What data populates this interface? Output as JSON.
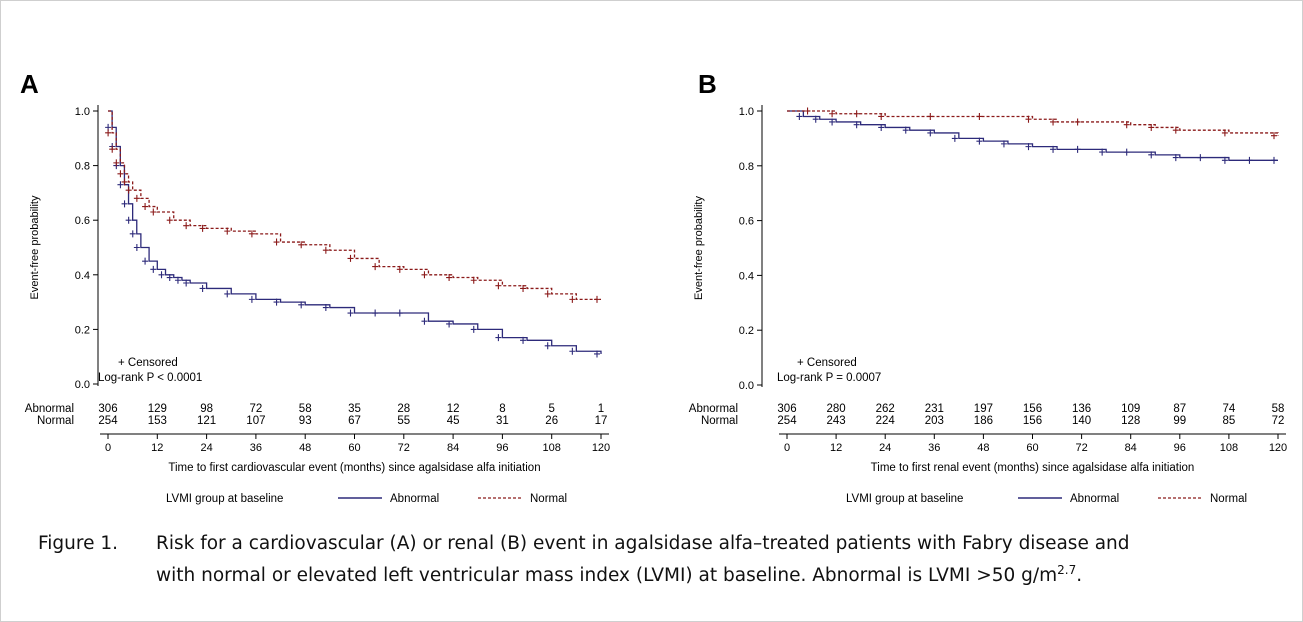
{
  "caption": {
    "label": "Figure 1.",
    "line1": "Risk for a cardiovascular (A) or renal (B) event in agalsidase alfa–treated patients with Fabry disease and",
    "line2_pre": "with normal or elevated left ventricular mass index (LVMI) at baseline. Abnormal is LVMI >50 g/m",
    "line2_sup": "2.7",
    "line2_post": "."
  },
  "colors": {
    "abnormal": "#2d2a7a",
    "normal": "#8b1a1a"
  },
  "chart_data": [
    {
      "panel": "A",
      "type": "line",
      "xlabel": "Time to first cardiovascular event (months) since agalsidase alfa initiation",
      "ylabel": "Event-free probability",
      "xlim": [
        0,
        120
      ],
      "ylim": [
        0,
        1.0
      ],
      "x_ticks": [
        0,
        12,
        24,
        36,
        48,
        60,
        72,
        84,
        96,
        108,
        120
      ],
      "y_ticks": [
        "0.0",
        "0.2",
        "0.4",
        "0.6",
        "0.8",
        "1.0"
      ],
      "censor_note": "+ Censored",
      "logrank": "Log-rank P < 0.0001",
      "legend_title": "LVMI group at baseline",
      "at_risk": {
        "Abnormal": [
          306,
          129,
          98,
          72,
          58,
          35,
          28,
          12,
          8,
          5,
          1
        ],
        "Normal": [
          254,
          153,
          121,
          107,
          93,
          67,
          55,
          45,
          31,
          26,
          17
        ]
      },
      "series": [
        {
          "name": "Abnormal",
          "style": "solid",
          "x": [
            0,
            1,
            2,
            3,
            4,
            5,
            6,
            7,
            8,
            10,
            12,
            14,
            16,
            18,
            20,
            24,
            30,
            36,
            42,
            48,
            54,
            60,
            66,
            72,
            78,
            84,
            90,
            96,
            102,
            108,
            114,
            120
          ],
          "y": [
            1.0,
            0.94,
            0.87,
            0.8,
            0.73,
            0.66,
            0.6,
            0.55,
            0.5,
            0.45,
            0.42,
            0.4,
            0.39,
            0.38,
            0.37,
            0.35,
            0.33,
            0.31,
            0.3,
            0.29,
            0.28,
            0.26,
            0.26,
            0.26,
            0.23,
            0.22,
            0.2,
            0.17,
            0.16,
            0.14,
            0.12,
            0.11
          ]
        },
        {
          "name": "Normal",
          "style": "dashed",
          "x": [
            0,
            1,
            2,
            3,
            4,
            5,
            6,
            8,
            10,
            12,
            16,
            20,
            24,
            30,
            36,
            42,
            48,
            54,
            60,
            66,
            72,
            78,
            84,
            90,
            96,
            102,
            108,
            114,
            120
          ],
          "y": [
            1.0,
            0.92,
            0.86,
            0.81,
            0.77,
            0.74,
            0.71,
            0.68,
            0.65,
            0.63,
            0.6,
            0.58,
            0.57,
            0.56,
            0.55,
            0.52,
            0.51,
            0.49,
            0.46,
            0.43,
            0.42,
            0.4,
            0.39,
            0.38,
            0.36,
            0.35,
            0.33,
            0.31,
            0.31
          ]
        }
      ]
    },
    {
      "panel": "B",
      "type": "line",
      "xlabel": "Time to first renal event (months) since agalsidase alfa initiation",
      "ylabel": "Event-free probability",
      "xlim": [
        0,
        120
      ],
      "ylim": [
        0,
        1.0
      ],
      "x_ticks": [
        0,
        12,
        24,
        36,
        48,
        60,
        72,
        84,
        96,
        108,
        120
      ],
      "y_ticks": [
        "0.0",
        "0.2",
        "0.4",
        "0.6",
        "0.8",
        "1.0"
      ],
      "censor_note": "+ Censored",
      "logrank": "Log-rank P = 0.0007",
      "legend_title": "LVMI group at baseline",
      "at_risk": {
        "Abnormal": [
          306,
          280,
          262,
          231,
          197,
          156,
          136,
          109,
          87,
          74,
          58
        ],
        "Normal": [
          254,
          243,
          224,
          203,
          186,
          156,
          140,
          128,
          99,
          85,
          72
        ]
      },
      "series": [
        {
          "name": "Abnormal",
          "style": "solid",
          "x": [
            0,
            4,
            8,
            12,
            18,
            24,
            30,
            36,
            42,
            48,
            54,
            60,
            66,
            72,
            78,
            84,
            90,
            96,
            102,
            108,
            114,
            120
          ],
          "y": [
            1.0,
            0.98,
            0.97,
            0.96,
            0.95,
            0.94,
            0.93,
            0.92,
            0.9,
            0.89,
            0.88,
            0.87,
            0.86,
            0.86,
            0.85,
            0.85,
            0.84,
            0.83,
            0.83,
            0.82,
            0.82,
            0.82
          ]
        },
        {
          "name": "Normal",
          "style": "dashed",
          "x": [
            0,
            6,
            12,
            18,
            24,
            36,
            48,
            60,
            66,
            72,
            84,
            90,
            96,
            108,
            120
          ],
          "y": [
            1.0,
            1.0,
            0.99,
            0.99,
            0.98,
            0.98,
            0.98,
            0.97,
            0.96,
            0.96,
            0.95,
            0.94,
            0.93,
            0.92,
            0.91
          ]
        }
      ]
    }
  ]
}
